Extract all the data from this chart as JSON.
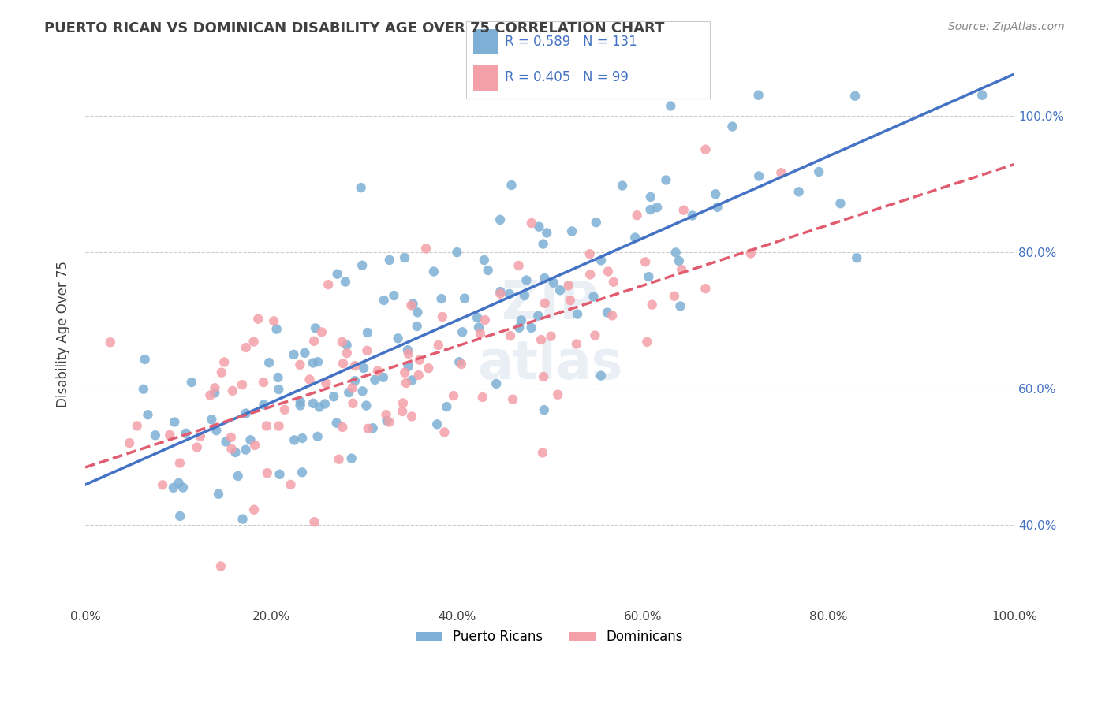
{
  "title": "PUERTO RICAN VS DOMINICAN DISABILITY AGE OVER 75 CORRELATION CHART",
  "source": "Source: ZipAtlas.com",
  "ylabel": "Disability Age Over 75",
  "xmin": 0.0,
  "xmax": 1.0,
  "ymin": 0.28,
  "ymax": 1.08,
  "blue_R": 0.589,
  "blue_N": 131,
  "pink_R": 0.405,
  "pink_N": 99,
  "blue_color": "#7EB0D5",
  "pink_color": "#F4A0A8",
  "blue_line_color": "#4472C4",
  "pink_line_color": "#E05C6E",
  "background_color": "#FFFFFF",
  "grid_color": "#CCCCCC",
  "title_color": "#404040",
  "legend_text_color": "#4472C4",
  "blue_seed": 42,
  "pink_seed": 99,
  "x_ticks": [
    0.0,
    0.2,
    0.4,
    0.6,
    0.8,
    1.0
  ],
  "y_ticks": [
    0.4,
    0.6,
    0.8,
    1.0
  ]
}
